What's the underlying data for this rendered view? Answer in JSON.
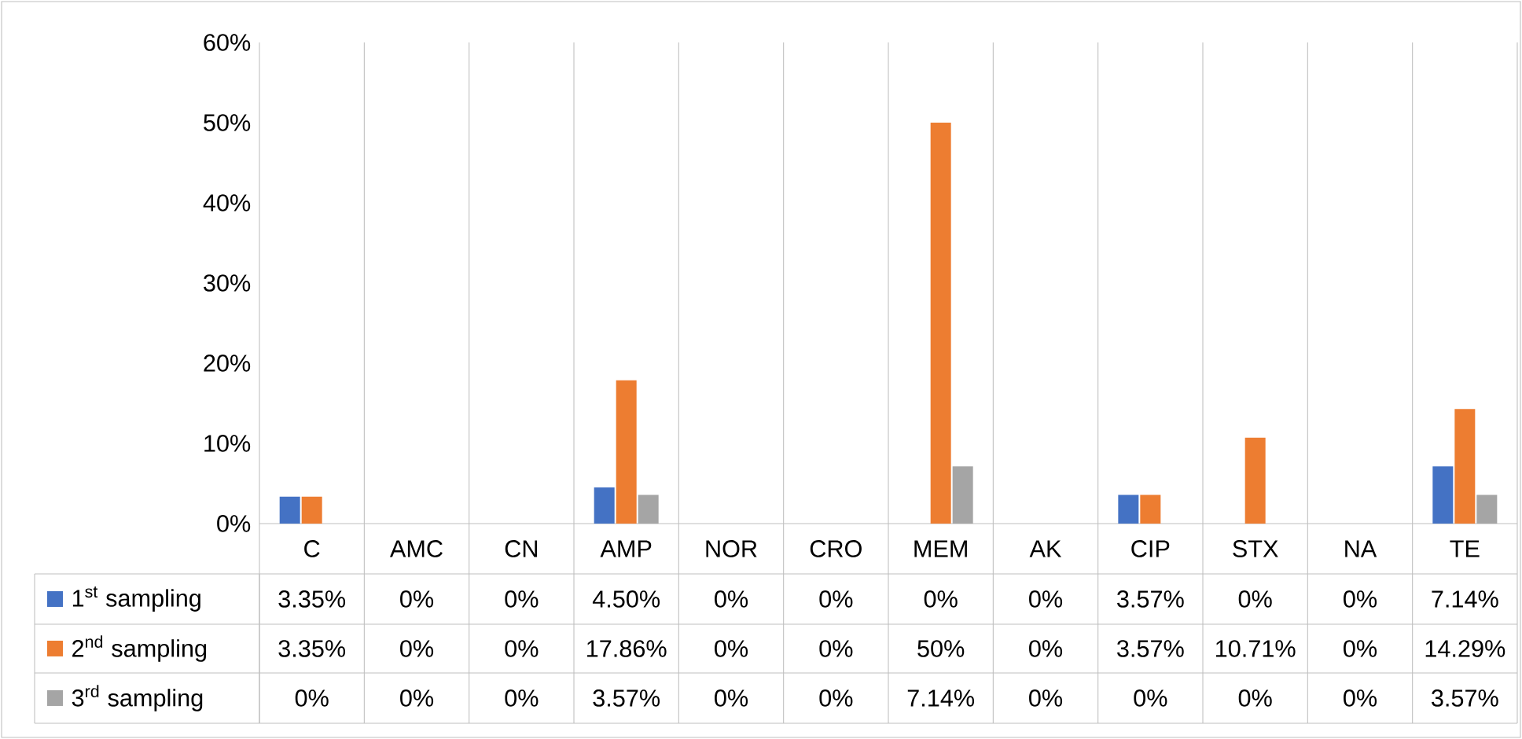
{
  "chart_data": {
    "type": "bar",
    "categories": [
      "C",
      "AMC",
      "CN",
      "AMP",
      "NOR",
      "CRO",
      "MEM",
      "AK",
      "CIP",
      "STX",
      "NA",
      "TE"
    ],
    "series": [
      {
        "name": "1$^{st}$ sampling",
        "color": "#4472c4",
        "values": [
          3.35,
          0,
          0,
          4.5,
          0,
          0,
          0,
          0,
          3.57,
          0,
          0,
          7.14
        ],
        "value_labels": [
          "3.35%",
          "0%",
          "0%",
          "4.50%",
          "0%",
          "0%",
          "0%",
          "0%",
          "3.57%",
          "0%",
          "0%",
          "7.14%"
        ]
      },
      {
        "name": "2$^{nd}$ sampling",
        "color": "#ed7d31",
        "values": [
          3.35,
          0,
          0,
          17.86,
          0,
          0,
          50,
          0,
          3.57,
          10.71,
          0,
          14.29
        ],
        "value_labels": [
          "3.35%",
          "0%",
          "0%",
          "17.86%",
          "0%",
          "0%",
          "50%",
          "0%",
          "3.57%",
          "10.71%",
          "0%",
          "14.29%"
        ]
      },
      {
        "name": "3$^{rd}$ sampling",
        "color": "#a5a5a5",
        "values": [
          0,
          0,
          0,
          3.57,
          0,
          0,
          7.14,
          0,
          0,
          0,
          0,
          3.57
        ],
        "value_labels": [
          "0%",
          "0%",
          "0%",
          "3.57%",
          "0%",
          "0%",
          "7.14%",
          "0%",
          "0%",
          "0%",
          "0%",
          "3.57%"
        ]
      }
    ],
    "ylim": [
      0,
      60
    ],
    "yticks": [
      {
        "value": 0,
        "label": "0%"
      },
      {
        "value": 10,
        "label": "10%"
      },
      {
        "value": 20,
        "label": "20%"
      },
      {
        "value": 30,
        "label": "30%"
      },
      {
        "value": 40,
        "label": "40%"
      },
      {
        "value": 50,
        "label": "50%"
      },
      {
        "value": 60,
        "label": "60%"
      }
    ],
    "grid": "x",
    "legend": "bottom"
  }
}
